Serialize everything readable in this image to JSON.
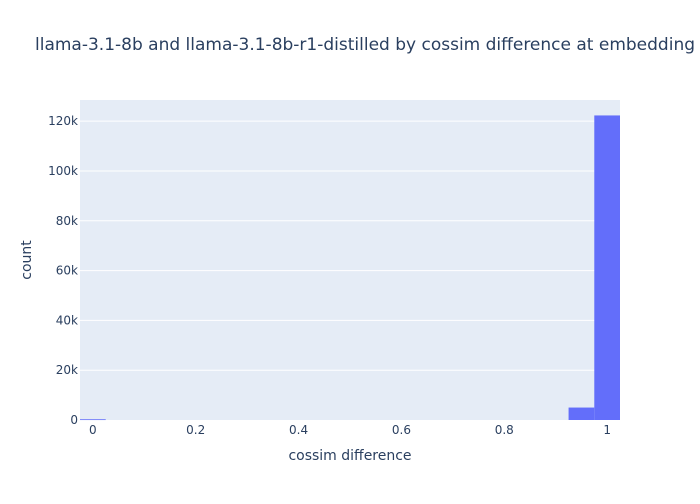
{
  "chart_data": {
    "type": "bar",
    "title": "llama-3.1-8b and llama-3.1-8b-r1-distilled by cossim difference at embedding",
    "xlabel": "cossim difference",
    "ylabel": "count",
    "xlim": [
      -0.025,
      1.025
    ],
    "ylim": [
      0,
      128500
    ],
    "x_ticks": [
      0,
      0.2,
      0.4,
      0.6,
      0.8,
      1
    ],
    "x_tick_labels": [
      "0",
      "0.2",
      "0.4",
      "0.6",
      "0.8",
      "1"
    ],
    "y_ticks": [
      0,
      20000,
      40000,
      60000,
      80000,
      100000,
      120000
    ],
    "y_tick_labels": [
      "0",
      "20k",
      "40k",
      "60k",
      "80k",
      "100k",
      "120k"
    ],
    "bin_width": 0.05,
    "bins": [
      {
        "x0": -0.025,
        "x1": 0.025,
        "count": 300
      },
      {
        "x0": 0.925,
        "x1": 0.975,
        "count": 5000
      },
      {
        "x0": 0.975,
        "x1": 1.025,
        "count": 122300
      }
    ],
    "bar_color": "#636efa",
    "plot_bg": "#e5ecf6",
    "grid": true
  }
}
